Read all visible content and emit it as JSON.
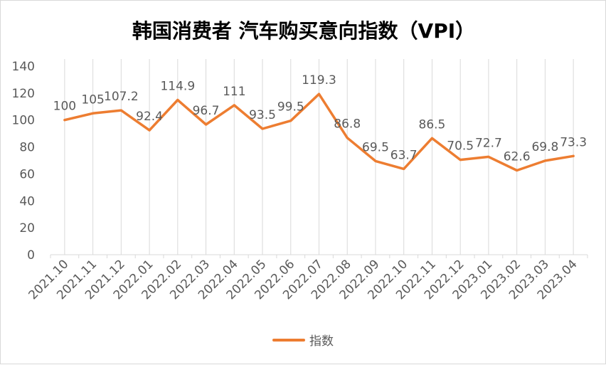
{
  "chart_data": {
    "type": "line",
    "title": "韩国消费者 汽车购买意向指数（VPI）",
    "categories": [
      "2021.10",
      "2021.11",
      "2021.12",
      "2022.01",
      "2022.02",
      "2022.03",
      "2022.04",
      "2022.05",
      "2022.06",
      "2022.07",
      "2022.08",
      "2022.09",
      "2022.10",
      "2022.11",
      "2022.12",
      "2023.01",
      "2023.02",
      "2023.03",
      "2023.04"
    ],
    "series": [
      {
        "name": "指数",
        "values": [
          100,
          105,
          107.2,
          92.4,
          114.9,
          96.7,
          111,
          93.5,
          99.5,
          119.3,
          86.8,
          69.5,
          63.7,
          86.5,
          70.5,
          72.7,
          62.6,
          69.8,
          73.3
        ],
        "labels": [
          "100",
          "105",
          "107.2",
          "92.4",
          "114.9",
          "96.7",
          "111",
          "93.5",
          "99.5",
          "119.3",
          "86.8",
          "69.5",
          "63.7",
          "86.5",
          "70.5",
          "72.7",
          "62.6",
          "69.8",
          "73.3"
        ],
        "color": "#ED7D31"
      }
    ],
    "ylim": [
      0,
      140
    ],
    "yticks": [
      "0",
      "20",
      "40",
      "60",
      "80",
      "100",
      "120",
      "140"
    ],
    "xlabel": "",
    "ylabel": "",
    "grid": "vertical",
    "gridColor": "#d9d9d9",
    "legend": "bottom"
  }
}
